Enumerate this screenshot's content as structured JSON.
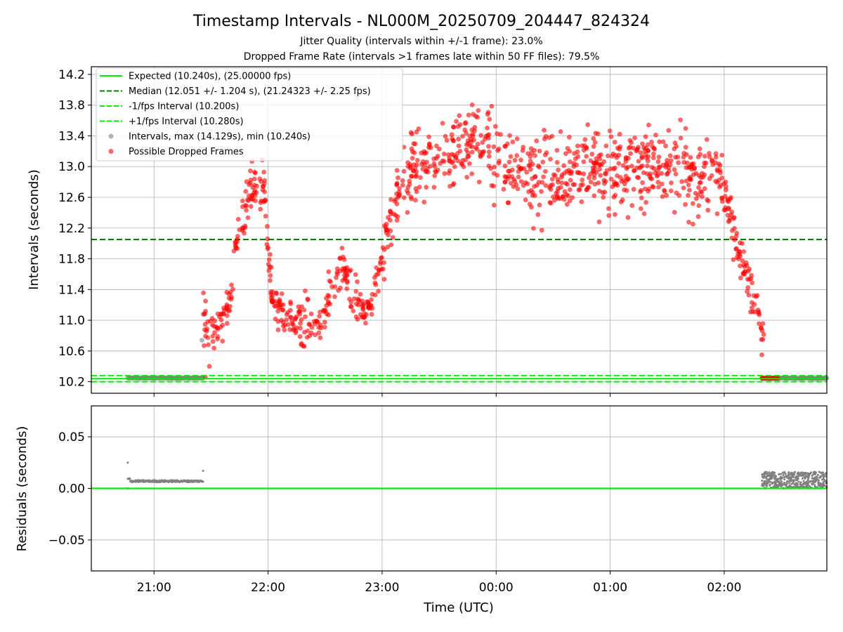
{
  "chart_data": [
    {
      "panel": "top",
      "type": "scatter",
      "title": "Timestamp Intervals - NL000M_20250709_204447_824324",
      "subtitle_lines": [
        "Jitter Quality (intervals within +/-1 frame): 23.0%",
        "Dropped Frame Rate (intervals >1 frames late within 50 FF files): 79.5%"
      ],
      "ylabel": "Intervals (seconds)",
      "xlim": [
        20.45,
        2.9
      ],
      "ylim": [
        10.05,
        14.3
      ],
      "yticks": [
        10.2,
        10.6,
        11.0,
        11.4,
        11.8,
        12.2,
        12.6,
        13.0,
        13.4,
        13.8,
        14.2
      ],
      "ytick_labels": [
        "10.2",
        "10.6",
        "11.0",
        "11.4",
        "11.8",
        "12.2",
        "12.6",
        "13.0",
        "13.4",
        "13.8",
        "14.2"
      ],
      "grid": true,
      "legend_placement": "top-left",
      "legend": [
        {
          "label": "Expected (10.240s), (25.00000 fps)",
          "style": "solid-line",
          "color": "#00ee00"
        },
        {
          "label": "Median (12.051 +/- 1.204 s), (21.24323 +/- 2.25 fps)",
          "style": "dashed-line",
          "color": "#008000"
        },
        {
          "label": "-1/fps Interval (10.200s)",
          "style": "dashed-line",
          "color": "#00ee00"
        },
        {
          "label": "+1/fps Interval (10.280s)",
          "style": "dashed-line",
          "color": "#00ee00"
        },
        {
          "label": "Intervals, max (14.129s), min (10.240s)",
          "style": "marker",
          "color": "#808080"
        },
        {
          "label": "Possible Dropped Frames",
          "style": "marker",
          "color": "#ff0000"
        }
      ],
      "hlines": {
        "expected": 10.24,
        "median": 12.051,
        "minus_one_fps": 10.2,
        "plus_one_fps": 10.28
      },
      "series": [
        {
          "name": "Possible Dropped Frames",
          "color": "#ff0000",
          "trend_anchors": [
            [
              21.43,
              10.95
            ],
            [
              21.55,
              10.85
            ],
            [
              21.65,
              11.15
            ],
            [
              21.75,
              12.2
            ],
            [
              21.85,
              12.75
            ],
            [
              21.97,
              12.6
            ],
            [
              22.03,
              11.3
            ],
            [
              22.15,
              11.05
            ],
            [
              22.3,
              10.9
            ],
            [
              22.45,
              10.95
            ],
            [
              22.55,
              11.3
            ],
            [
              22.65,
              11.7
            ],
            [
              22.75,
              11.3
            ],
            [
              22.85,
              11.05
            ],
            [
              22.95,
              11.45
            ],
            [
              23.05,
              12.1
            ],
            [
              23.15,
              12.7
            ],
            [
              23.3,
              12.95
            ],
            [
              23.55,
              13.05
            ],
            [
              23.75,
              13.35
            ],
            [
              23.9,
              13.4
            ],
            [
              24.0,
              13.05
            ],
            [
              24.2,
              12.9
            ],
            [
              24.5,
              12.85
            ],
            [
              24.8,
              13.0
            ],
            [
              25.1,
              12.9
            ],
            [
              25.4,
              13.0
            ],
            [
              25.6,
              12.95
            ],
            [
              25.8,
              12.85
            ],
            [
              25.9,
              13.05
            ],
            [
              26.02,
              12.55
            ],
            [
              26.1,
              12.05
            ],
            [
              26.2,
              11.6
            ],
            [
              26.3,
              11.1
            ],
            [
              26.35,
              10.7
            ]
          ],
          "summary": {
            "min": 10.4,
            "max": 14.13
          }
        },
        {
          "name": "Intervals",
          "color": "#808080",
          "segments": [
            {
              "x_range": [
                20.77,
                21.43
              ],
              "y": 10.247
            },
            {
              "x_range": [
                26.33,
                2.9
              ],
              "y": 10.245
            }
          ]
        },
        {
          "name": "Possible Dropped Frames (near expected)",
          "color": "#ff0000",
          "segments": [
            {
              "x_range": [
                26.33,
                26.47
              ],
              "y": 10.245
            }
          ]
        }
      ]
    },
    {
      "panel": "bottom",
      "type": "scatter",
      "xlabel": "Time (UTC)",
      "ylabel": "Residuals (seconds)",
      "xlim": [
        20.45,
        2.9
      ],
      "ylim": [
        -0.08,
        0.08
      ],
      "yticks": [
        -0.05,
        0.0,
        0.05
      ],
      "ytick_labels": [
        "−0.05",
        "0.00",
        "0.05"
      ],
      "xticks": [
        "21:00",
        "22:00",
        "23:00",
        "00:00",
        "01:00",
        "02:00"
      ],
      "grid": true,
      "zero_line_color": "#00ee00",
      "series": [
        {
          "name": "Residuals",
          "color": "#808080",
          "segments": [
            {
              "x_range": [
                20.77,
                21.43
              ],
              "y_typical": 0.007,
              "outliers": [
                0.025,
                0.0,
                0.017
              ]
            },
            {
              "x_range": [
                26.33,
                2.9
              ],
              "y_range": [
                0.0,
                0.016
              ]
            }
          ]
        }
      ]
    }
  ]
}
